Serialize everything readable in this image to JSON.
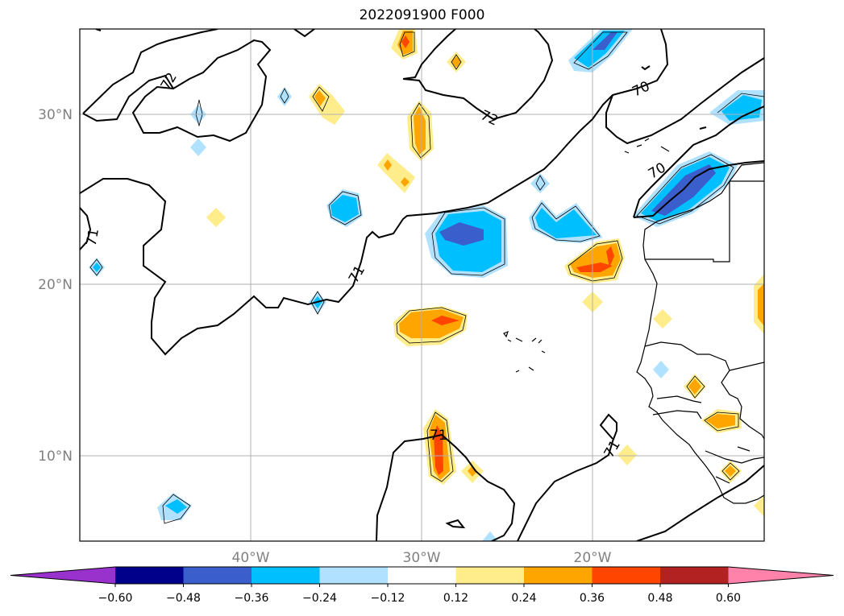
{
  "title": "2022091900 F000",
  "map": {
    "lon_ticks": [
      "40°W",
      "30°W",
      "20°W"
    ],
    "lat_ticks": [
      "30°N",
      "20°N",
      "10°N"
    ],
    "grid": true
  },
  "contour_labels": [
    "72",
    "72",
    "71",
    "71",
    "70",
    "70",
    "71",
    "71"
  ],
  "colorbar": {
    "labels": [
      "−0.60",
      "−0.48",
      "−0.36",
      "−0.24",
      "−0.12",
      "0.12",
      "0.24",
      "0.36",
      "0.48",
      "0.60"
    ],
    "colors": [
      "#9932cc",
      "#00008b",
      "#3a5fcd",
      "#00bfff",
      "#b0e2ff",
      "#ffffff",
      "#ffec8b",
      "#ffa500",
      "#ff4500",
      "#b22222",
      "#ff82ab"
    ]
  }
}
